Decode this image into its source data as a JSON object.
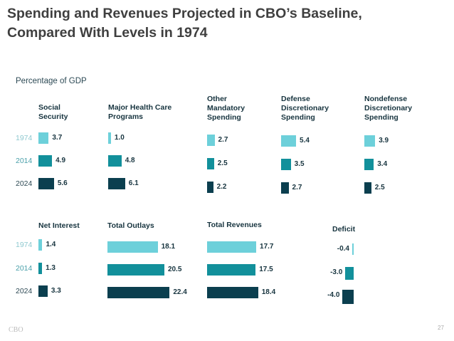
{
  "chart_data": {
    "type": "bar",
    "orientation": "horizontal",
    "title": "Spending and Revenues Projected in CBO’s Baseline,\nCompared With Levels in 1974",
    "unit_label": "Percentage of GDP",
    "categories": [
      "1974",
      "2014",
      "2024"
    ],
    "colors": {
      "1974": "#6dd0da",
      "2014": "#12909b",
      "2024": "#0b3f4f"
    },
    "panels": [
      {
        "name": "Social\nSecurity",
        "values": [
          3.7,
          4.9,
          5.6
        ]
      },
      {
        "name": "Major Health Care\nPrograms",
        "values": [
          1.0,
          4.8,
          6.1
        ]
      },
      {
        "name": "Other\nMandatory\nSpending",
        "values": [
          2.7,
          2.5,
          2.2
        ]
      },
      {
        "name": "Defense\nDiscretionary\nSpending",
        "values": [
          5.4,
          3.5,
          2.7
        ]
      },
      {
        "name": "Nondefense\nDiscretionary\nSpending",
        "values": [
          3.9,
          3.4,
          2.5
        ]
      },
      {
        "name": "Net Interest",
        "values": [
          1.4,
          1.3,
          3.3
        ]
      },
      {
        "name": "Total Outlays",
        "values": [
          18.1,
          20.5,
          22.4
        ]
      },
      {
        "name": "Total Revenues",
        "values": [
          17.7,
          17.5,
          18.4
        ]
      },
      {
        "name": "Deficit",
        "values": [
          -0.4,
          -3.0,
          -4.0
        ]
      }
    ]
  },
  "footer": {
    "source": "CBO",
    "page": "27"
  }
}
